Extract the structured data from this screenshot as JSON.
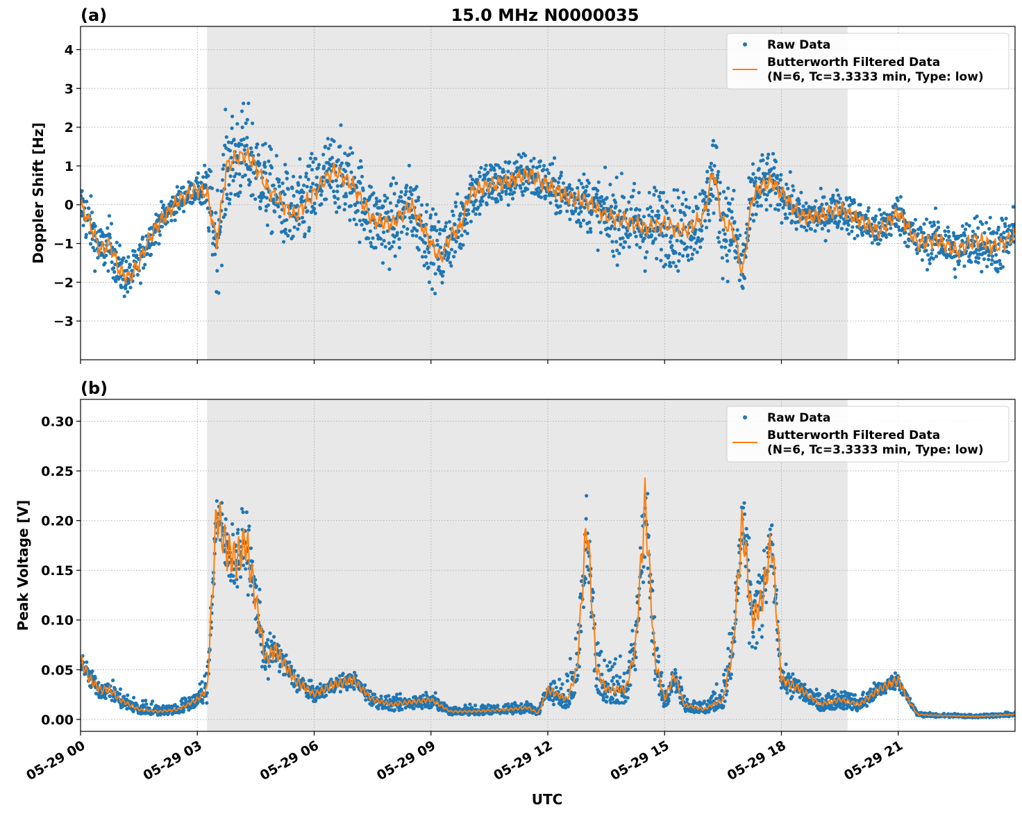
{
  "chart_data": {
    "type": "scatter",
    "title": "15.0 MHz N0000035",
    "xlabel": "UTC",
    "x_range": [
      "05-29 00",
      "05-30 00"
    ],
    "x_ticks": [
      "05-29 00",
      "05-29 03",
      "05-29 06",
      "05-29 09",
      "05-29 12",
      "05-29 15",
      "05-29 18",
      "05-29 21"
    ],
    "x_tick_hours": [
      0,
      3,
      6,
      9,
      12,
      15,
      18,
      21
    ],
    "shaded_region_hours": [
      3.25,
      19.7
    ],
    "grid": true,
    "colors": {
      "raw": "#1f77b4",
      "filtered": "#ff7f0e",
      "shade": "#e8e8e8"
    },
    "legend": {
      "placement": "top-right",
      "raw_label": "Raw Data",
      "filtered_label_line1": "Butterworth Filtered Data",
      "filtered_label_line2": "(N=6, Tc=3.3333 min, Type: low)"
    },
    "panels": [
      {
        "label": "(a)",
        "ylabel": "Doppler Shift [Hz]",
        "ylim": [
          -4.0,
          4.6
        ],
        "y_ticks": [
          -3,
          -2,
          -1,
          0,
          1,
          2,
          3,
          4
        ],
        "y_tick_labels": [
          "−3",
          "−2",
          "−1",
          "0",
          "1",
          "2",
          "3",
          "4"
        ],
        "series": [
          {
            "name": "Butterworth Filtered Data",
            "hours": [
              0,
              0.25,
              0.5,
              0.75,
              1,
              1.25,
              1.5,
              1.75,
              2,
              2.5,
              3,
              3.25,
              3.5,
              3.75,
              4,
              4.25,
              4.5,
              4.75,
              5,
              5.5,
              6,
              6.5,
              7,
              7.5,
              8,
              8.5,
              9,
              9.25,
              9.5,
              9.75,
              10,
              10.5,
              11,
              11.5,
              12,
              12.5,
              13,
              13.5,
              14,
              14.5,
              15,
              15.5,
              16,
              16.25,
              16.5,
              16.75,
              17,
              17.25,
              17.5,
              17.75,
              18,
              18.5,
              19,
              19.5,
              20,
              20.5,
              21,
              21.5,
              22,
              22.5,
              23,
              23.5,
              24
            ],
            "values": [
              0.0,
              -0.5,
              -1.2,
              -1.0,
              -1.7,
              -1.9,
              -1.5,
              -0.9,
              -0.5,
              0.1,
              0.4,
              0.3,
              -1.0,
              1.0,
              1.2,
              1.3,
              1.0,
              0.5,
              0.2,
              -0.3,
              0.3,
              0.9,
              0.5,
              -0.4,
              -0.5,
              0.0,
              -1.0,
              -1.4,
              -0.8,
              -0.6,
              0.3,
              0.5,
              0.6,
              0.8,
              0.5,
              0.2,
              0.1,
              -0.3,
              -0.4,
              -0.6,
              -0.5,
              -0.7,
              -0.3,
              0.9,
              -0.5,
              -0.6,
              -1.8,
              0.2,
              0.5,
              0.6,
              0.3,
              -0.3,
              -0.3,
              -0.1,
              -0.4,
              -0.7,
              -0.2,
              -1.0,
              -0.9,
              -1.2,
              -0.9,
              -1.1,
              -0.8
            ]
          },
          {
            "name": "Raw Data",
            "spread_hours": [
              0,
              1,
              2,
              3,
              3.5,
              4,
              5,
              6,
              7,
              8,
              9,
              10,
              11,
              12,
              13,
              14,
              15,
              16,
              16.5,
              17,
              17.5,
              18,
              19,
              20,
              21,
              22,
              23,
              24
            ],
            "spread_hz": [
              0.7,
              0.6,
              0.4,
              0.3,
              1.3,
              1.3,
              1.0,
              1.1,
              1.0,
              1.0,
              0.9,
              0.8,
              0.6,
              0.6,
              0.7,
              1.0,
              1.0,
              0.9,
              1.2,
              1.0,
              0.8,
              0.6,
              0.5,
              0.5,
              0.5,
              0.6,
              0.7,
              0.7
            ]
          }
        ]
      },
      {
        "label": "(b)",
        "ylabel": "Peak Voltage [V]",
        "ylim": [
          -0.012,
          0.322
        ],
        "y_ticks": [
          0.0,
          0.05,
          0.1,
          0.15,
          0.2,
          0.25,
          0.3
        ],
        "y_tick_labels": [
          "0.00",
          "0.05",
          "0.10",
          "0.15",
          "0.20",
          "0.25",
          "0.30"
        ],
        "series": [
          {
            "name": "Butterworth Filtered Data",
            "hours": [
              0,
              0.25,
              0.5,
              0.75,
              1,
              1.5,
              2,
              2.5,
              3,
              3.25,
              3.5,
              3.75,
              4,
              4.25,
              4.5,
              4.75,
              5,
              5.5,
              6,
              6.5,
              7,
              7.5,
              8,
              9,
              9.5,
              10,
              11,
              11.5,
              11.75,
              12,
              12.5,
              12.75,
              13,
              13.25,
              13.5,
              14,
              14.25,
              14.5,
              14.75,
              15,
              15.25,
              15.5,
              16,
              16.5,
              16.75,
              17,
              17.25,
              17.5,
              17.75,
              18,
              18.5,
              19,
              19.5,
              20,
              20.5,
              21,
              21.25,
              21.5,
              22,
              23,
              24
            ],
            "values": [
              0.06,
              0.04,
              0.03,
              0.03,
              0.02,
              0.01,
              0.008,
              0.01,
              0.02,
              0.03,
              0.21,
              0.17,
              0.16,
              0.18,
              0.12,
              0.06,
              0.07,
              0.04,
              0.025,
              0.035,
              0.04,
              0.02,
              0.015,
              0.02,
              0.008,
              0.008,
              0.01,
              0.012,
              0.006,
              0.03,
              0.02,
              0.05,
              0.2,
              0.05,
              0.03,
              0.03,
              0.07,
              0.22,
              0.06,
              0.02,
              0.045,
              0.015,
              0.01,
              0.02,
              0.07,
              0.2,
              0.1,
              0.12,
              0.18,
              0.04,
              0.03,
              0.015,
              0.02,
              0.015,
              0.03,
              0.04,
              0.02,
              0.005,
              0.004,
              0.003,
              0.005
            ]
          },
          {
            "name": "Raw Data",
            "spread_hours": [
              0,
              3,
              3.5,
              4,
              4.5,
              5,
              6,
              12,
              12.75,
              13,
              14,
              14.5,
              15,
              16,
              17,
              17.5,
              18,
              20,
              21,
              21.5,
              24
            ],
            "spread_v": [
              0.01,
              0.008,
              0.03,
              0.035,
              0.03,
              0.015,
              0.008,
              0.006,
              0.04,
              0.05,
              0.02,
              0.05,
              0.012,
              0.008,
              0.04,
              0.04,
              0.012,
              0.01,
              0.008,
              0.002,
              0.002
            ]
          }
        ]
      }
    ]
  }
}
